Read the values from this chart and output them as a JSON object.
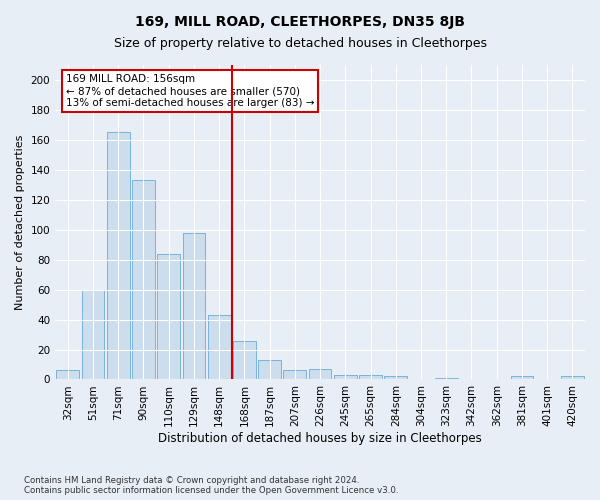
{
  "title": "169, MILL ROAD, CLEETHORPES, DN35 8JB",
  "subtitle": "Size of property relative to detached houses in Cleethorpes",
  "xlabel": "Distribution of detached houses by size in Cleethorpes",
  "ylabel": "Number of detached properties",
  "categories": [
    "32sqm",
    "51sqm",
    "71sqm",
    "90sqm",
    "110sqm",
    "129sqm",
    "148sqm",
    "168sqm",
    "187sqm",
    "207sqm",
    "226sqm",
    "245sqm",
    "265sqm",
    "284sqm",
    "304sqm",
    "323sqm",
    "342sqm",
    "362sqm",
    "381sqm",
    "401sqm",
    "420sqm"
  ],
  "values": [
    6,
    60,
    165,
    133,
    84,
    98,
    43,
    26,
    13,
    6,
    7,
    3,
    3,
    2,
    0,
    1,
    0,
    0,
    2,
    0,
    2
  ],
  "bar_color": "#ccdded",
  "bar_edge_color": "#6aaad4",
  "vline_x_index": 7,
  "vline_color": "#cc0000",
  "annotation_text": "169 MILL ROAD: 156sqm\n← 87% of detached houses are smaller (570)\n13% of semi-detached houses are larger (83) →",
  "annotation_box_color": "#ffffff",
  "annotation_box_edge_color": "#cc0000",
  "ylim": [
    0,
    210
  ],
  "yticks": [
    0,
    20,
    40,
    60,
    80,
    100,
    120,
    140,
    160,
    180,
    200
  ],
  "title_fontsize": 10,
  "subtitle_fontsize": 9,
  "xlabel_fontsize": 8.5,
  "ylabel_fontsize": 8,
  "tick_fontsize": 7.5,
  "footer_text": "Contains HM Land Registry data © Crown copyright and database right 2024.\nContains public sector information licensed under the Open Government Licence v3.0.",
  "bg_color": "#e8eef5",
  "plot_bg_color": "#e8eef5"
}
